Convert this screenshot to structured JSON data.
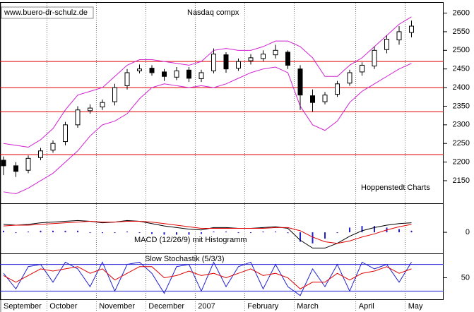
{
  "source": "www.buero-dr-schulz.de",
  "credit": "Hoppenstedt Charts",
  "chart_data": [
    {
      "type": "candlestick",
      "title": "Nasdaq compx",
      "categories": [
        "September",
        null,
        null,
        null,
        "October",
        null,
        null,
        null,
        "November",
        null,
        null,
        null,
        "December",
        null,
        null,
        null,
        "2007",
        null,
        null,
        null,
        "February",
        null,
        null,
        null,
        "March",
        null,
        null,
        null,
        null,
        "April",
        null,
        null,
        null,
        "May"
      ],
      "open": [
        2205,
        2190,
        2178,
        2212,
        2232,
        2255,
        2300,
        2338,
        2348,
        2362,
        2405,
        2445,
        2452,
        2442,
        2428,
        2447,
        2424,
        2445,
        2488,
        2452,
        2472,
        2478,
        2488,
        2495,
        2450,
        2378,
        2362,
        2382,
        2412,
        2442,
        2458,
        2502,
        2528,
        2548
      ],
      "high": [
        2215,
        2200,
        2218,
        2238,
        2258,
        2308,
        2350,
        2355,
        2368,
        2410,
        2450,
        2462,
        2460,
        2450,
        2455,
        2455,
        2448,
        2505,
        2495,
        2478,
        2490,
        2500,
        2515,
        2500,
        2460,
        2395,
        2388,
        2418,
        2448,
        2468,
        2510,
        2540,
        2565,
        2580
      ],
      "low": [
        2165,
        2160,
        2170,
        2205,
        2225,
        2245,
        2292,
        2330,
        2340,
        2352,
        2395,
        2438,
        2432,
        2418,
        2420,
        2415,
        2415,
        2438,
        2440,
        2445,
        2462,
        2470,
        2478,
        2450,
        2340,
        2335,
        2355,
        2375,
        2405,
        2432,
        2450,
        2492,
        2515,
        2535
      ],
      "close": [
        2190,
        2175,
        2210,
        2230,
        2250,
        2300,
        2340,
        2345,
        2360,
        2400,
        2440,
        2450,
        2440,
        2430,
        2445,
        2425,
        2440,
        2490,
        2450,
        2470,
        2480,
        2490,
        2500,
        2460,
        2380,
        2360,
        2380,
        2410,
        2440,
        2460,
        2500,
        2530,
        2550,
        2565
      ],
      "series": [
        {
          "color": "#d020d0",
          "values": [
            2250,
            2245,
            2240,
            2260,
            2290,
            2340,
            2380,
            2390,
            2400,
            2430,
            2460,
            2475,
            2475,
            2470,
            2465,
            2460,
            2470,
            2500,
            2505,
            2500,
            2500,
            2510,
            2525,
            2525,
            2510,
            2480,
            2430,
            2430,
            2460,
            2480,
            2510,
            2540,
            2570,
            2590
          ]
        },
        {
          "color": "#d020d0",
          "values": [
            2120,
            2115,
            2130,
            2150,
            2170,
            2200,
            2230,
            2270,
            2300,
            2310,
            2330,
            2370,
            2400,
            2410,
            2405,
            2400,
            2405,
            2400,
            2410,
            2425,
            2440,
            2450,
            2455,
            2440,
            2350,
            2300,
            2285,
            2310,
            2360,
            2390,
            2410,
            2430,
            2450,
            2465
          ]
        }
      ],
      "levels": [
        2470,
        2400,
        2335,
        2220
      ],
      "level_color": "#e00000",
      "ylim": [
        2095,
        2620
      ],
      "yticks": [
        2150,
        2200,
        2250,
        2300,
        2350,
        2400,
        2450,
        2500,
        2550,
        2600
      ]
    },
    {
      "type": "macd",
      "title": "MACD (12/26/9) mit Histogramm",
      "series": [
        {
          "color": "#000000",
          "values": [
            10,
            9,
            10,
            12,
            13,
            14,
            15,
            14,
            12,
            13,
            15,
            14,
            11,
            8,
            6,
            4,
            3,
            6,
            6,
            5,
            5,
            6,
            7,
            5,
            -10,
            -20,
            -20,
            -14,
            -5,
            2,
            6,
            9,
            11,
            12
          ]
        },
        {
          "color": "#e00000",
          "values": [
            8,
            9,
            9,
            10,
            11,
            12,
            13,
            14,
            13,
            13,
            14,
            14,
            13,
            11,
            9,
            7,
            5,
            5,
            5,
            5,
            5,
            5,
            6,
            6,
            2,
            -6,
            -12,
            -14,
            -11,
            -6,
            -2,
            3,
            7,
            10
          ]
        }
      ],
      "histogram": {
        "color": "#2020d0",
        "values": [
          2,
          0,
          1,
          2,
          2,
          2,
          2,
          0,
          -1,
          0,
          1,
          0,
          -2,
          -3,
          -3,
          -3,
          -2,
          1,
          1,
          0,
          0,
          1,
          1,
          -1,
          -12,
          -14,
          -8,
          0,
          6,
          8,
          8,
          6,
          4,
          2
        ]
      },
      "ylim": [
        -25,
        35
      ],
      "yticks": [
        0
      ]
    },
    {
      "type": "stochastic",
      "title": "Slow Stochastik (5/3/3)",
      "series": [
        {
          "color": "#2020d0",
          "values": [
            60,
            25,
            75,
            80,
            40,
            85,
            70,
            30,
            85,
            20,
            80,
            85,
            60,
            15,
            75,
            80,
            20,
            85,
            30,
            75,
            85,
            25,
            80,
            30,
            10,
            70,
            30,
            80,
            20,
            85,
            70,
            80,
            40,
            85
          ]
        },
        {
          "color": "#e00000",
          "values": [
            55,
            40,
            55,
            70,
            65,
            70,
            75,
            60,
            70,
            45,
            60,
            75,
            75,
            50,
            55,
            65,
            55,
            60,
            50,
            60,
            70,
            55,
            60,
            50,
            25,
            40,
            40,
            60,
            45,
            60,
            65,
            75,
            60,
            70
          ]
        }
      ],
      "levels": [
        20,
        80
      ],
      "level_color": "#2020d0",
      "ylim": [
        0,
        100
      ],
      "yticks": [
        50
      ]
    }
  ]
}
